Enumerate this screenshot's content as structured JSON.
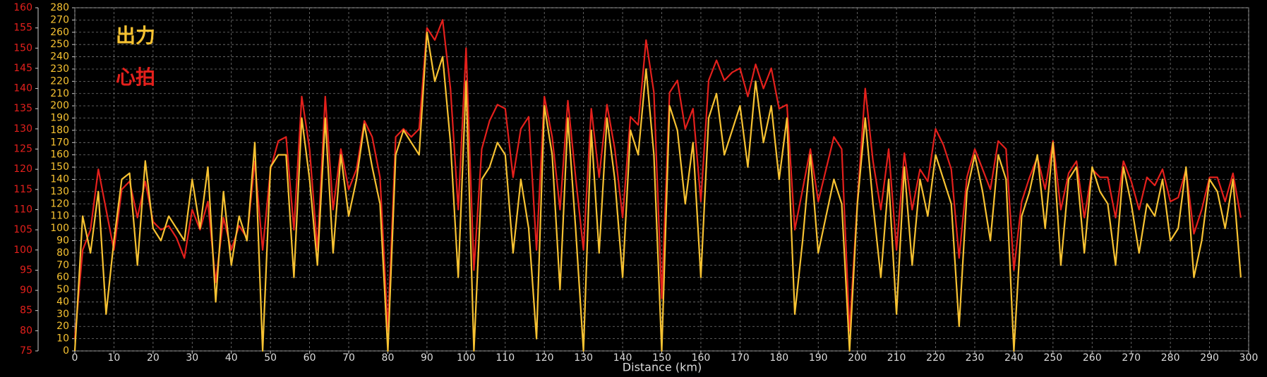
{
  "chart_data": {
    "type": "line",
    "x_label": "Distance (km)",
    "x": [
      0,
      2,
      4,
      6,
      8,
      10,
      12,
      14,
      16,
      18,
      20,
      22,
      24,
      26,
      28,
      30,
      32,
      34,
      36,
      38,
      40,
      42,
      44,
      46,
      48,
      50,
      52,
      54,
      56,
      58,
      60,
      62,
      64,
      66,
      68,
      70,
      72,
      74,
      76,
      78,
      80,
      82,
      84,
      86,
      88,
      90,
      92,
      94,
      96,
      98,
      100,
      102,
      104,
      106,
      108,
      110,
      112,
      114,
      116,
      118,
      120,
      122,
      124,
      126,
      128,
      130,
      132,
      134,
      136,
      138,
      140,
      142,
      144,
      146,
      148,
      150,
      152,
      154,
      156,
      158,
      160,
      162,
      164,
      166,
      168,
      170,
      172,
      174,
      176,
      178,
      180,
      182,
      184,
      186,
      188,
      190,
      192,
      194,
      196,
      198,
      200,
      202,
      204,
      206,
      208,
      210,
      212,
      214,
      216,
      218,
      220,
      222,
      224,
      226,
      228,
      230,
      232,
      234,
      236,
      238,
      240,
      242,
      244,
      246,
      248,
      250,
      252,
      254,
      256,
      258,
      260,
      262,
      264,
      266,
      268,
      270,
      272,
      274,
      276,
      278,
      280,
      282,
      284,
      286,
      288,
      290,
      292,
      294,
      296,
      298
    ],
    "series": [
      {
        "name": "出力",
        "color": "#f7c232",
        "values": [
          0,
          110,
          80,
          130,
          30,
          90,
          140,
          145,
          70,
          155,
          100,
          90,
          110,
          100,
          90,
          140,
          100,
          150,
          40,
          130,
          70,
          110,
          90,
          170,
          0,
          150,
          160,
          160,
          60,
          190,
          140,
          70,
          190,
          80,
          160,
          110,
          140,
          185,
          150,
          120,
          0,
          160,
          180,
          170,
          160,
          260,
          220,
          240,
          170,
          60,
          220,
          0,
          140,
          150,
          170,
          160,
          80,
          140,
          100,
          10,
          200,
          160,
          50,
          190,
          100,
          0,
          180,
          80,
          190,
          140,
          60,
          180,
          160,
          230,
          160,
          0,
          200,
          180,
          120,
          170,
          60,
          190,
          210,
          160,
          180,
          200,
          150,
          220,
          170,
          200,
          140,
          190,
          30,
          90,
          160,
          80,
          110,
          140,
          120,
          0,
          120,
          190,
          120,
          60,
          140,
          30,
          150,
          70,
          140,
          110,
          160,
          140,
          120,
          20,
          130,
          160,
          130,
          90,
          160,
          140,
          0,
          110,
          130,
          160,
          100,
          170,
          70,
          140,
          150,
          80,
          150,
          130,
          120,
          70,
          150,
          120,
          80,
          120,
          110,
          140,
          90,
          100,
          150,
          60,
          90,
          140,
          130,
          100,
          140,
          60
        ]
      },
      {
        "name": "心拍",
        "color": "#e4201c",
        "axis": "y2",
        "values": [
          78,
          100,
          105,
          120,
          110,
          100,
          115,
          117,
          108,
          117,
          107,
          105,
          106,
          103,
          98,
          110,
          105,
          112,
          92,
          108,
          100,
          106,
          103,
          122,
          100,
          120,
          127,
          128,
          105,
          138,
          125,
          100,
          138,
          110,
          125,
          115,
          120,
          132,
          128,
          118,
          80,
          128,
          130,
          128,
          130,
          155,
          152,
          157,
          140,
          110,
          150,
          95,
          125,
          132,
          136,
          135,
          118,
          130,
          133,
          100,
          138,
          128,
          110,
          137,
          118,
          100,
          135,
          118,
          136,
          125,
          108,
          133,
          131,
          152,
          139,
          88,
          139,
          142,
          130,
          135,
          112,
          142,
          147,
          142,
          144,
          145,
          138,
          146,
          140,
          145,
          135,
          136,
          105,
          115,
          125,
          112,
          120,
          128,
          125,
          80,
          112,
          140,
          122,
          110,
          125,
          100,
          124,
          110,
          120,
          117,
          130,
          126,
          120,
          98,
          118,
          125,
          120,
          115,
          127,
          125,
          95,
          112,
          118,
          123,
          115,
          127,
          110,
          119,
          122,
          108,
          120,
          118,
          118,
          108,
          122,
          117,
          110,
          118,
          116,
          120,
          112,
          113,
          120,
          104,
          110,
          118,
          118,
          112,
          119,
          108
        ]
      }
    ],
    "xlim": [
      0,
      300
    ],
    "xticks": [
      0,
      10,
      20,
      30,
      40,
      50,
      60,
      70,
      80,
      90,
      100,
      110,
      120,
      130,
      140,
      150,
      160,
      170,
      180,
      190,
      200,
      210,
      220,
      230,
      240,
      250,
      260,
      270,
      280,
      290,
      300
    ],
    "ylim": [
      0,
      280
    ],
    "yticks": [
      0,
      10,
      20,
      30,
      40,
      50,
      60,
      70,
      80,
      90,
      100,
      110,
      120,
      130,
      140,
      150,
      160,
      170,
      180,
      190,
      200,
      210,
      220,
      230,
      240,
      250,
      260,
      270,
      280
    ],
    "y2lim": [
      75,
      160
    ],
    "y2ticks": [
      75,
      80,
      85,
      90,
      95,
      100,
      105,
      110,
      115,
      120,
      125,
      130,
      135,
      140,
      145,
      150,
      155,
      160
    ],
    "grid": true
  }
}
